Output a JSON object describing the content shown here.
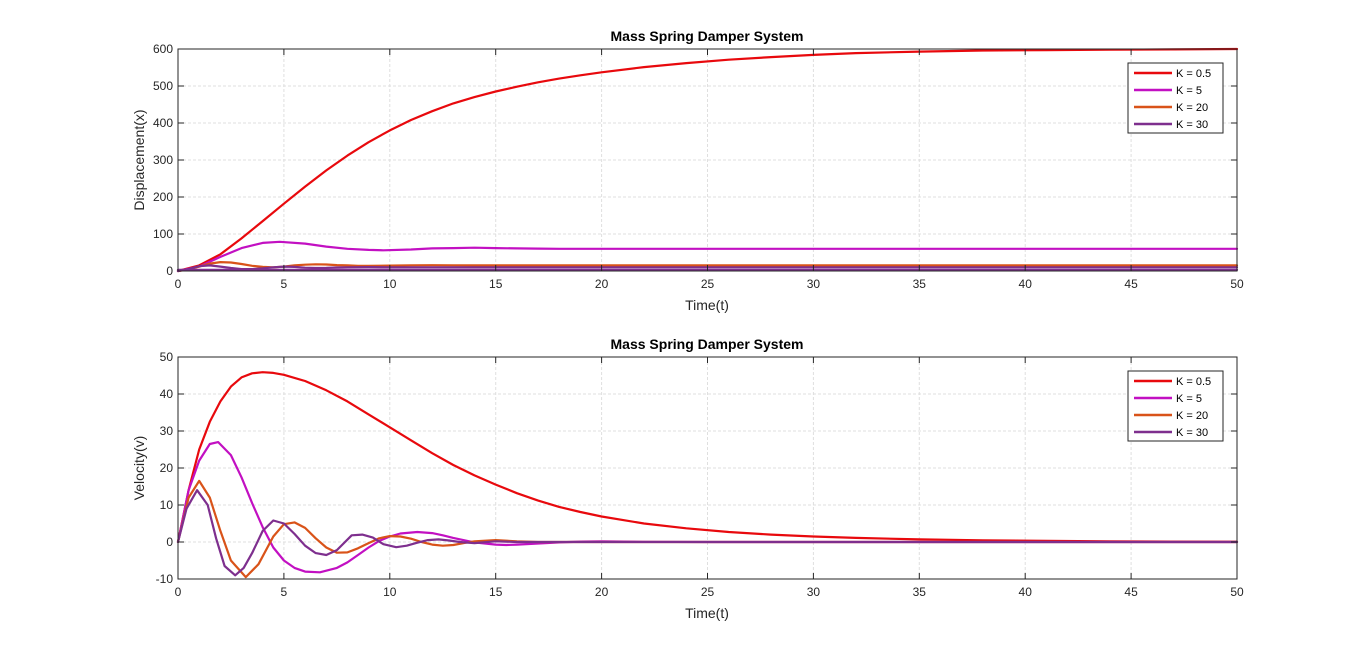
{
  "chart_data": [
    {
      "type": "line",
      "title": "Mass Spring Damper System",
      "xlabel": "Time(t)",
      "ylabel": "Displacement(x)",
      "xlim": [
        0,
        50
      ],
      "ylim": [
        0,
        600
      ],
      "xticks": [
        0,
        5,
        10,
        15,
        20,
        25,
        30,
        35,
        40,
        45,
        50
      ],
      "yticks": [
        0,
        100,
        200,
        300,
        400,
        500,
        600
      ],
      "grid": true,
      "legend_position": "top-right",
      "series": [
        {
          "name": "K = 0.5",
          "color": "#e8090d",
          "x": [
            0,
            1,
            2,
            3,
            4,
            5,
            6,
            7,
            8,
            9,
            10,
            11,
            12,
            13,
            14,
            15,
            16,
            17,
            18,
            19,
            20,
            22,
            24,
            26,
            28,
            30,
            32,
            35,
            38,
            41,
            44,
            47,
            50
          ],
          "y": [
            0,
            15,
            45,
            88,
            135,
            182,
            228,
            272,
            312,
            348,
            380,
            408,
            432,
            453,
            470,
            485,
            498,
            510,
            520,
            529,
            537,
            551,
            562,
            571,
            578,
            584,
            589,
            593,
            596,
            597,
            598,
            599,
            600
          ]
        },
        {
          "name": "K = 5",
          "color": "#c210c2",
          "x": [
            0,
            1,
            2,
            3,
            4,
            4.8,
            6,
            7,
            8,
            9,
            9.7,
            11,
            12,
            13,
            14,
            15,
            16,
            17,
            18,
            20,
            22,
            25,
            30,
            35,
            40,
            45,
            50
          ],
          "y": [
            0,
            12,
            38,
            62,
            76,
            79,
            74,
            66,
            60,
            57,
            56,
            58,
            61,
            62,
            63,
            62,
            61,
            60.5,
            60,
            60,
            60,
            60,
            60,
            60,
            60,
            60,
            60
          ]
        },
        {
          "name": "K = 20",
          "color": "#d95319",
          "x": [
            0,
            0.5,
            1,
            1.5,
            2,
            2.5,
            3,
            3.5,
            4,
            4.5,
            5,
            5.5,
            6,
            6.5,
            7,
            7.5,
            8,
            8.5,
            9,
            10,
            11,
            12,
            13,
            14,
            15,
            20,
            30,
            40,
            50
          ],
          "y": [
            0,
            4,
            12,
            20,
            24,
            23,
            19,
            14,
            11,
            10,
            12,
            15,
            17,
            18,
            17.5,
            16,
            15,
            14,
            14,
            14.5,
            15.5,
            15.8,
            15.3,
            15,
            15,
            15,
            15,
            15,
            15
          ]
        },
        {
          "name": "K = 30",
          "color": "#7e2f8e",
          "x": [
            0,
            0.5,
            1,
            1.5,
            2,
            2.5,
            3,
            3.5,
            4,
            4.5,
            5,
            5.5,
            6,
            6.5,
            7,
            7.5,
            8,
            9,
            10,
            11,
            12,
            15,
            20,
            30,
            40,
            50
          ],
          "y": [
            0,
            5,
            13,
            15,
            12,
            8,
            5,
            5,
            7,
            10,
            12,
            11,
            9,
            8,
            8.5,
            9.5,
            10,
            10.5,
            10,
            10,
            10,
            10,
            10,
            10,
            10,
            10
          ]
        },
        {
          "name": "",
          "color": "#7e2f8e",
          "x": [
            0,
            50
          ],
          "y": [
            3,
            3
          ]
        }
      ]
    },
    {
      "type": "line",
      "title": "Mass Spring Damper System",
      "xlabel": "Time(t)",
      "ylabel": "Velocity(v)",
      "xlim": [
        0,
        50
      ],
      "ylim": [
        -10,
        50
      ],
      "xticks": [
        0,
        5,
        10,
        15,
        20,
        25,
        30,
        35,
        40,
        45,
        50
      ],
      "yticks": [
        -10,
        0,
        10,
        20,
        30,
        40,
        50
      ],
      "grid": true,
      "legend_position": "top-right",
      "series": [
        {
          "name": "K = 0.5",
          "color": "#e8090d",
          "x": [
            0,
            0.5,
            1,
            1.5,
            2,
            2.5,
            3,
            3.5,
            4,
            4.5,
            5,
            6,
            7,
            8,
            9,
            10,
            11,
            12,
            13,
            14,
            15,
            16,
            17,
            18,
            19,
            20,
            22,
            24,
            26,
            28,
            30,
            32,
            35,
            38,
            41,
            44,
            47,
            50
          ],
          "y": [
            0,
            14,
            25,
            32.5,
            38,
            42,
            44.5,
            45.6,
            45.9,
            45.7,
            45.2,
            43.5,
            41,
            38,
            34.5,
            31,
            27.5,
            24,
            20.8,
            18,
            15.5,
            13.2,
            11.2,
            9.5,
            8.1,
            6.9,
            5,
            3.7,
            2.7,
            2,
            1.5,
            1.1,
            0.7,
            0.45,
            0.3,
            0.2,
            0.12,
            0.08
          ]
        },
        {
          "name": "K = 5",
          "color": "#c210c2",
          "x": [
            0,
            0.5,
            1,
            1.5,
            1.9,
            2.5,
            3,
            3.5,
            4,
            4.5,
            5,
            5.5,
            6,
            6.7,
            7.5,
            8,
            8.5,
            9,
            9.5,
            10,
            10.5,
            11.3,
            12,
            12.5,
            13,
            14,
            15,
            15.5,
            16,
            17,
            18,
            19,
            20,
            22,
            25,
            30,
            35,
            40,
            45,
            50
          ],
          "y": [
            0,
            14,
            22,
            26.5,
            27,
            23.5,
            17.5,
            10.5,
            4,
            -1.5,
            -5,
            -7,
            -8,
            -8.2,
            -7,
            -5.5,
            -3.5,
            -1.5,
            0.3,
            1.5,
            2.3,
            2.7,
            2.4,
            1.8,
            1.1,
            -0.1,
            -0.7,
            -0.8,
            -0.7,
            -0.4,
            -0.1,
            0.1,
            0.2,
            0.05,
            0,
            0,
            0,
            0,
            0,
            0
          ]
        },
        {
          "name": "K = 20",
          "color": "#d95319",
          "x": [
            0,
            0.5,
            1,
            1.5,
            2,
            2.5,
            3.2,
            3.8,
            4.5,
            5,
            5.5,
            6,
            6.5,
            7,
            7.5,
            8,
            8.5,
            9,
            9.5,
            10,
            10.5,
            11,
            11.5,
            12,
            12.5,
            13,
            13.5,
            14,
            15,
            16,
            17,
            20,
            30,
            40,
            50
          ],
          "y": [
            0,
            12,
            16.5,
            12,
            3,
            -5,
            -9.5,
            -6,
            1.5,
            4.8,
            5.3,
            3.8,
            1,
            -1.5,
            -2.9,
            -2.8,
            -1.7,
            -0.3,
            1,
            1.6,
            1.5,
            0.9,
            0,
            -0.7,
            -1,
            -0.8,
            -0.3,
            0.2,
            0.5,
            0.2,
            0,
            0,
            0,
            0,
            0
          ]
        },
        {
          "name": "K = 30",
          "color": "#7e2f8e",
          "x": [
            0,
            0.4,
            0.9,
            1.4,
            1.8,
            2.2,
            2.7,
            3.1,
            3.5,
            4,
            4.5,
            5,
            5.5,
            6,
            6.5,
            7,
            7.5,
            8.2,
            8.7,
            9.2,
            9.7,
            10.3,
            10.8,
            11.3,
            11.8,
            12.3,
            12.8,
            13.3,
            14,
            15,
            16,
            17,
            20,
            30,
            40,
            50
          ],
          "y": [
            0,
            9,
            14,
            10,
            1,
            -6.5,
            -9,
            -7,
            -3,
            3,
            5.8,
            5,
            2.2,
            -1,
            -3,
            -3.5,
            -2.2,
            1.8,
            2,
            1.2,
            -0.6,
            -1.4,
            -1,
            -0.2,
            0.5,
            0.7,
            0.4,
            0,
            -0.3,
            0.2,
            0,
            0,
            0,
            0,
            0,
            0
          ]
        }
      ]
    }
  ]
}
